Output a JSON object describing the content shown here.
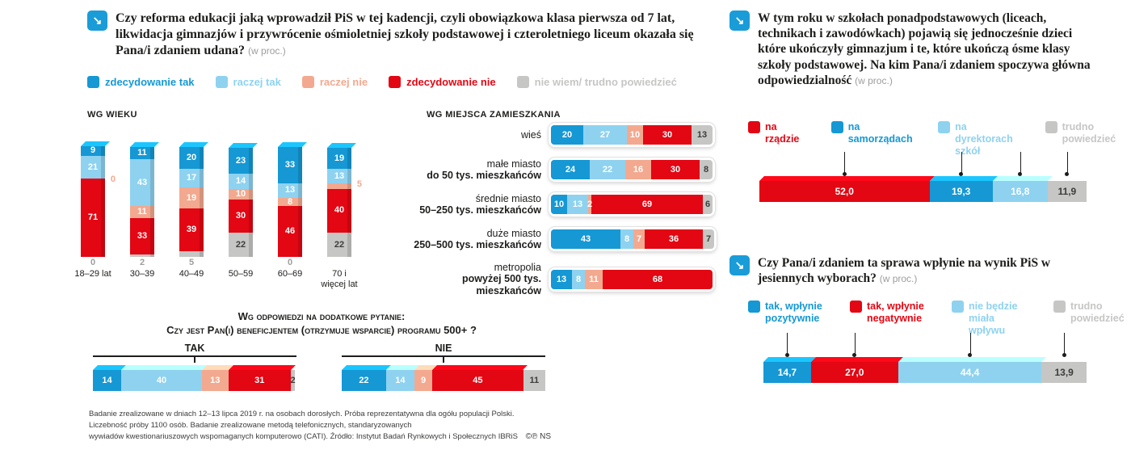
{
  "colors": {
    "blue": "#1598d4",
    "lightblue": "#8ed2f0",
    "salmon": "#f3a98f",
    "red": "#e30613",
    "gray": "#c6c6c5",
    "dark": "#1d1d1b",
    "graytext": "#9d9d9c"
  },
  "icons": {
    "question_arrow": "↘"
  },
  "left": {
    "title": "Czy reforma edukacji jaką wprowadził PiS w tej kadencji, czyli obowiązkowa klasa pierwsza od 7 lat, likwidacja gimnazjów i przywrócenie ośmioletniej szkoły podstawowej i czteroletniego liceum okazała się Pana/i zdaniem udana?",
    "title_note": "(w proc.)",
    "legend": [
      {
        "label": "zdecydowanie tak",
        "color_key": "blue"
      },
      {
        "label": "raczej tak",
        "color_key": "lightblue"
      },
      {
        "label": "raczej nie",
        "color_key": "salmon"
      },
      {
        "label": "zdecydowanie nie",
        "color_key": "red"
      },
      {
        "label": "nie wiem/ trudno powiedzieć",
        "color_key": "gray"
      }
    ],
    "age_heading": "WG WIEKU",
    "residence_heading": "WG MIEJSCA ZAMIESZKANIA",
    "q500_heading1": "Wg odpowiedzi na dodatkowe pytanie:",
    "q500_heading2": "Czy jest Pan(i) beneficjentem (otrzymuje wsparcie) programu 500+ ?",
    "footer_lines": [
      "Badanie zrealizowane w dniach 12–13 lipca 2019 r. na osobach dorosłych. Próba reprezentatywna dla ogółu populacji Polski.",
      "Liczebność próby 1100 osób. Badanie zrealizowane metodą telefonicznych, standaryzowanych",
      "wywiadów kwestionariuszowych wspomaganych komputerowo (CATI). Źródło: Instytut Badań Rynkowych i Społecznych IBRiS"
    ],
    "footer_marks": "©℗ NS"
  },
  "right_top": {
    "title": "W tym roku w szkołach ponadpodstawowych (liceach, technikach i zawodówkach) pojawią się jednocześnie dzieci które ukończyły gimnazjum i te, które ukończą ósme klasy szkoły podstawowej. Na kim Pana/i zdaniem spoczywa główna odpowiedzialność",
    "title_note": "(w proc.)"
  },
  "right_bottom": {
    "title": "Czy Pana/i zdaniem ta sprawa wpłynie na wynik PiS w jesiennych wyborach?",
    "title_note": "(w proc.)"
  },
  "chart_data": [
    {
      "id": "age",
      "type": "bar",
      "orientation": "vertical",
      "stacked": true,
      "title": "WG WIEKU",
      "categories": [
        "18–29 lat",
        "30–39",
        "40–49",
        "50–59",
        "60–69",
        "70 i więcej lat"
      ],
      "series": [
        {
          "name": "zdecydowanie tak",
          "color_key": "blue",
          "values": [
            9,
            11,
            20,
            23,
            33,
            19
          ]
        },
        {
          "name": "raczej tak",
          "color_key": "lightblue",
          "values": [
            21,
            43,
            17,
            14,
            13,
            13
          ]
        },
        {
          "name": "raczej nie",
          "color_key": "salmon",
          "values": [
            0,
            11,
            19,
            10,
            8,
            5
          ]
        },
        {
          "name": "zdecydowanie nie",
          "color_key": "red",
          "values": [
            71,
            33,
            39,
            30,
            46,
            40
          ]
        },
        {
          "name": "nie wiem/ trudno powiedzieć",
          "color_key": "gray",
          "values": [
            0,
            2,
            5,
            22,
            0,
            22
          ]
        }
      ]
    },
    {
      "id": "residence",
      "type": "bar",
      "orientation": "horizontal",
      "stacked": true,
      "title": "WG MIEJSCA ZAMIESZKANIA",
      "categories": [
        [
          "wieś"
        ],
        [
          "małe miasto",
          "do 50 tys. mieszkańców"
        ],
        [
          "średnie miasto",
          "50–250 tys. mieszkańców"
        ],
        [
          "duże miasto",
          "250–500 tys. mieszkańców"
        ],
        [
          "metropolia",
          "powyżej 500 tys. mieszkańców"
        ]
      ],
      "series": [
        {
          "name": "zdecydowanie tak",
          "color_key": "blue",
          "values": [
            20,
            24,
            10,
            43,
            13
          ]
        },
        {
          "name": "raczej tak",
          "color_key": "lightblue",
          "values": [
            27,
            22,
            13,
            8,
            8
          ]
        },
        {
          "name": "raczej nie",
          "color_key": "salmon",
          "values": [
            10,
            16,
            2,
            7,
            11
          ]
        },
        {
          "name": "zdecydowanie nie",
          "color_key": "red",
          "values": [
            30,
            30,
            69,
            36,
            68
          ]
        },
        {
          "name": "nie wiem/ trudno powiedzieć",
          "color_key": "gray",
          "values": [
            13,
            8,
            6,
            7,
            0
          ]
        }
      ]
    },
    {
      "id": "program500",
      "type": "bar",
      "orientation": "horizontal",
      "stacked": true,
      "title": "Czy jest Pan(i) beneficjentem (otrzymuje wsparcie) programu 500+ ?",
      "categories": [
        "TAK",
        "NIE"
      ],
      "series": [
        {
          "name": "zdecydowanie tak",
          "color_key": "blue",
          "values": [
            14,
            22
          ]
        },
        {
          "name": "raczej tak",
          "color_key": "lightblue",
          "values": [
            40,
            14
          ]
        },
        {
          "name": "raczej nie",
          "color_key": "salmon",
          "values": [
            13,
            9
          ]
        },
        {
          "name": "zdecydowanie nie",
          "color_key": "red",
          "values": [
            31,
            45
          ]
        },
        {
          "name": "nie wiem/ trudno powiedzieć",
          "color_key": "gray",
          "values": [
            2,
            11
          ]
        }
      ]
    },
    {
      "id": "responsibility",
      "type": "bar",
      "orientation": "horizontal",
      "stacked": true,
      "title": "Na kim spoczywa główna odpowiedzialność (w proc.)",
      "segments": [
        {
          "label": "na rządzie",
          "color_key": "red",
          "value": 52.0,
          "display": "52,0"
        },
        {
          "label": "na samorządach",
          "color_key": "blue",
          "value": 19.3,
          "display": "19,3"
        },
        {
          "label": "na dyrektorach szkół",
          "color_key": "lightblue",
          "value": 16.8,
          "display": "16,8"
        },
        {
          "label": "trudno powiedzieć",
          "color_key": "gray",
          "value": 11.9,
          "display": "11,9"
        }
      ]
    },
    {
      "id": "election",
      "type": "bar",
      "orientation": "horizontal",
      "stacked": true,
      "title": "Czy ta sprawa wpłynie na wynik PiS w jesiennych wyborach? (w proc.)",
      "segments": [
        {
          "label": "tak, wpłynie pozytywnie",
          "color_key": "blue",
          "value": 14.7,
          "display": "14,7"
        },
        {
          "label": "tak, wpłynie negatywnie",
          "color_key": "red",
          "value": 27.0,
          "display": "27,0"
        },
        {
          "label": "nie będzie miała wpływu",
          "color_key": "lightblue",
          "value": 44.4,
          "display": "44,4"
        },
        {
          "label": "trudno powiedzieć",
          "color_key": "gray",
          "value": 13.9,
          "display": "13,9"
        }
      ]
    }
  ]
}
